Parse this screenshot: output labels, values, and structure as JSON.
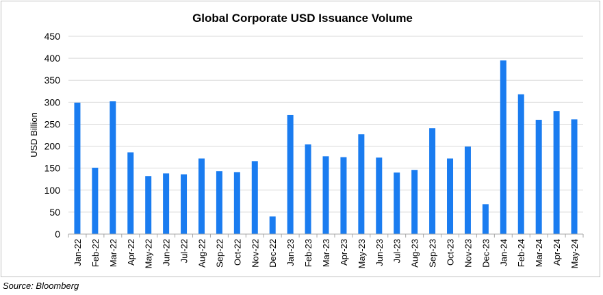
{
  "chart_data": {
    "type": "bar",
    "title": "Global Corporate USD Issuance Volume",
    "xlabel": "",
    "ylabel": "USD Billion",
    "ylim": [
      0,
      450
    ],
    "yticks": [
      0,
      50,
      100,
      150,
      200,
      250,
      300,
      350,
      400,
      450
    ],
    "grid": true,
    "bar_color": "#1a7cf0",
    "categories": [
      "Jan-22",
      "Feb-22",
      "Mar-22",
      "Apr-22",
      "May-22",
      "Jun-22",
      "Jul-22",
      "Aug-22",
      "Sep-22",
      "Oct-22",
      "Nov-22",
      "Dec-22",
      "Jan-23",
      "Feb-23",
      "Mar-23",
      "Apr-23",
      "May-23",
      "Jun-23",
      "Jul-23",
      "Aug-23",
      "Sep-23",
      "Oct-23",
      "Nov-23",
      "Dec-23",
      "Jan-24",
      "Feb-24",
      "Mar-24",
      "Apr-24",
      "May-24"
    ],
    "values": [
      299,
      151,
      302,
      186,
      132,
      138,
      136,
      172,
      143,
      141,
      166,
      40,
      271,
      204,
      177,
      175,
      227,
      174,
      140,
      146,
      241,
      172,
      199,
      68,
      395,
      318,
      260,
      280,
      261
    ]
  },
  "source": "Source: Bloomberg"
}
